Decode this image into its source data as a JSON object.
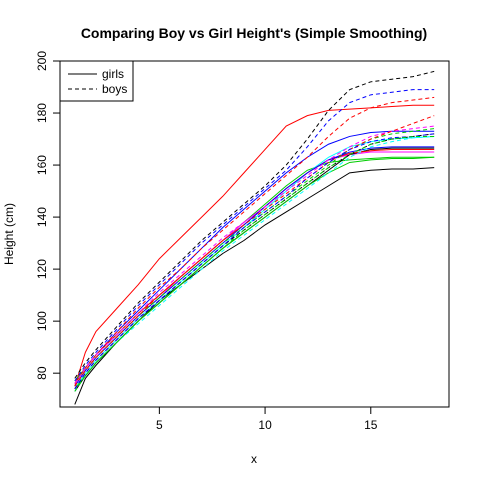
{
  "chart_data": {
    "type": "line",
    "title": "Comparing Boy vs Girl Height's (Simple Smoothing)",
    "xlabel": "x",
    "ylabel": "Height (cm)",
    "xlim": [
      0.3,
      18.7
    ],
    "ylim": [
      67,
      200
    ],
    "xticks": [
      5,
      10,
      15
    ],
    "yticks": [
      80,
      100,
      120,
      140,
      160,
      180,
      200
    ],
    "grid": false,
    "legend": {
      "placement": "top-left",
      "entries": [
        {
          "label": "girls",
          "style": "solid"
        },
        {
          "label": "boys",
          "style": "dashed"
        }
      ]
    },
    "x": [
      1,
      1.5,
      2,
      3,
      4,
      5,
      6,
      7,
      8,
      9,
      10,
      11,
      12,
      13,
      14,
      15,
      16,
      17,
      18
    ],
    "series": [
      {
        "group": "girls",
        "color": "#FF0000",
        "values": [
          75,
          88,
          96,
          105,
          114,
          124,
          132,
          140,
          148,
          157,
          166,
          175,
          179,
          181,
          181.5,
          182,
          182.5,
          183,
          183
        ]
      },
      {
        "group": "girls",
        "color": "#000000",
        "values": [
          68,
          78,
          83,
          92,
          100,
          108,
          114,
          120,
          126,
          131,
          137,
          142,
          147,
          152,
          157,
          158,
          158.5,
          158.5,
          159
        ]
      },
      {
        "group": "girls",
        "color": "#0000FF",
        "values": [
          76,
          82,
          87,
          96,
          104,
          112,
          120,
          128,
          136,
          143,
          150,
          157,
          163,
          168,
          171,
          172.5,
          173,
          173,
          173
        ]
      },
      {
        "group": "girls",
        "color": "#00CD00",
        "values": [
          77,
          82,
          87,
          95,
          103,
          110,
          117,
          124,
          131,
          138,
          145,
          152,
          158,
          161,
          162,
          162.5,
          163,
          163,
          163
        ]
      },
      {
        "group": "girls",
        "color": "#00FFFF",
        "values": [
          74,
          80,
          85,
          93,
          101,
          108,
          115,
          122,
          129,
          136,
          143,
          150,
          157,
          163,
          167,
          169,
          170,
          170.5,
          171
        ]
      },
      {
        "group": "girls",
        "color": "#FF00FF",
        "values": [
          75,
          81,
          86,
          94,
          102,
          109,
          117,
          124,
          131,
          138,
          144,
          151,
          157,
          162,
          164,
          165,
          165,
          165,
          165
        ]
      },
      {
        "group": "girls",
        "color": "#000000",
        "values": [
          73,
          79,
          84,
          92,
          100,
          107,
          114,
          121,
          128,
          134,
          140,
          146,
          152,
          158,
          164,
          166,
          166.5,
          166.5,
          166.5
        ]
      },
      {
        "group": "girls",
        "color": "#FF0000",
        "values": [
          76,
          82,
          87,
          95,
          103,
          110,
          117,
          124,
          131,
          137,
          144,
          151,
          157,
          162,
          164.5,
          165.5,
          166,
          166,
          166
        ]
      },
      {
        "group": "girls",
        "color": "#0000FF",
        "values": [
          75,
          81,
          86,
          94,
          102,
          109,
          116,
          123,
          130,
          137,
          144,
          151,
          157,
          162,
          165,
          166.5,
          167,
          167,
          167
        ]
      },
      {
        "group": "girls",
        "color": "#00CD00",
        "values": [
          74,
          79,
          84,
          92,
          100,
          107,
          114,
          121,
          128,
          134,
          140,
          146,
          152,
          157,
          161,
          162,
          162.5,
          162.5,
          163
        ]
      },
      {
        "group": "boys",
        "color": "#000000",
        "values": [
          78,
          84,
          89,
          98,
          107,
          115,
          123,
          131,
          138,
          145,
          152,
          160,
          170,
          181,
          189,
          192,
          193,
          194,
          196
        ]
      },
      {
        "group": "boys",
        "color": "#0000FF",
        "values": [
          77,
          83,
          88,
          97,
          106,
          114,
          122,
          130,
          137,
          144,
          151,
          158,
          167,
          177,
          184,
          187,
          188,
          189,
          189
        ]
      },
      {
        "group": "boys",
        "color": "#FF0000",
        "values": [
          76,
          82,
          87,
          96,
          105,
          113,
          120,
          128,
          135,
          142,
          149,
          156,
          163,
          171,
          178,
          182,
          184,
          185,
          186
        ]
      },
      {
        "group": "boys",
        "color": "#00CD00",
        "values": [
          75,
          81,
          86,
          94,
          102,
          109,
          116,
          123,
          130,
          136,
          142,
          148,
          154,
          160,
          166,
          170,
          172,
          173,
          174
        ]
      },
      {
        "group": "boys",
        "color": "#00FFFF",
        "values": [
          73,
          79,
          84,
          92,
          99,
          106,
          113,
          120,
          127,
          133,
          139,
          145,
          151,
          157,
          163,
          167,
          169,
          170.5,
          171
        ]
      },
      {
        "group": "boys",
        "color": "#FF00FF",
        "values": [
          76,
          82,
          87,
          95,
          103,
          111,
          118,
          125,
          132,
          138,
          144,
          150,
          156,
          162,
          167,
          171,
          173,
          174,
          175
        ]
      },
      {
        "group": "boys",
        "color": "#000000",
        "values": [
          74,
          80,
          85,
          93,
          101,
          108,
          115,
          122,
          129,
          135,
          141,
          147,
          153,
          159,
          164,
          168,
          170,
          171,
          172
        ]
      },
      {
        "group": "boys",
        "color": "#FF0000",
        "values": [
          75,
          81,
          86,
          94,
          102,
          110,
          117,
          124,
          131,
          137,
          143,
          149,
          155,
          161,
          166,
          170,
          173,
          176,
          179
        ]
      },
      {
        "group": "boys",
        "color": "#0000FF",
        "values": [
          74,
          80,
          85,
          93,
          101,
          108,
          115,
          122,
          129,
          136,
          142,
          148,
          155,
          161,
          166,
          169,
          170.5,
          171,
          172
        ]
      },
      {
        "group": "boys",
        "color": "#00CD00",
        "values": [
          73,
          79,
          84,
          92,
          100,
          107,
          114,
          121,
          128,
          135,
          141,
          147,
          153,
          159,
          164,
          168,
          170,
          171,
          171
        ]
      }
    ]
  }
}
